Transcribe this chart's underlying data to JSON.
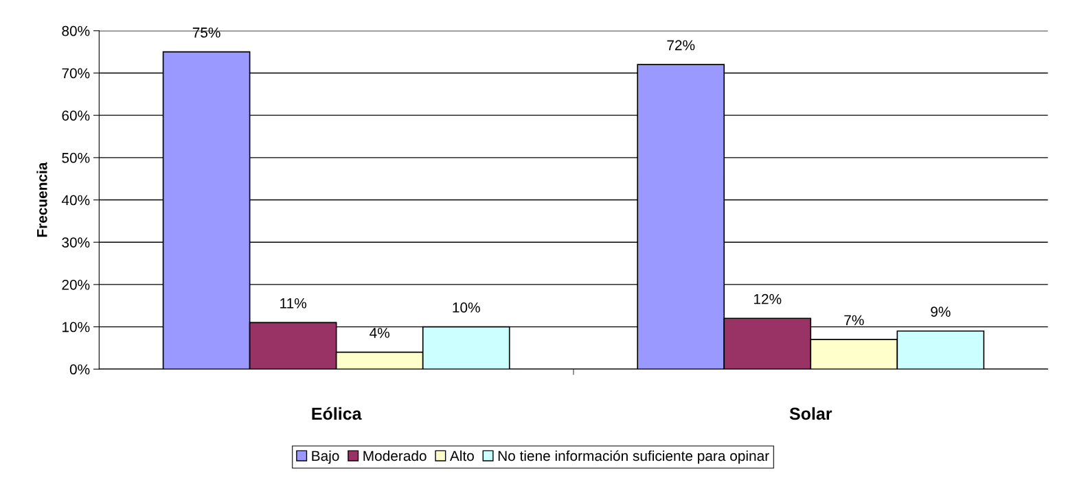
{
  "chart_data": {
    "type": "bar",
    "ylabel": "Frecuencia",
    "categories": [
      "Eólica",
      "Solar"
    ],
    "series": [
      {
        "name": "Bajo",
        "color": "#9999ff",
        "values": [
          75,
          72
        ],
        "value_labels": [
          "75%",
          "72%"
        ]
      },
      {
        "name": "Moderado",
        "color": "#993366",
        "values": [
          11,
          12
        ],
        "value_labels": [
          "11%",
          "12%"
        ]
      },
      {
        "name": "Alto",
        "color": "#ffffcc",
        "values": [
          4,
          7
        ],
        "value_labels": [
          "4%",
          "7%"
        ]
      },
      {
        "name": "No tiene información suficiente para opinar",
        "color": "#ccffff",
        "values": [
          10,
          9
        ],
        "value_labels": [
          "10%",
          "9%"
        ]
      }
    ],
    "ylim": [
      0,
      80
    ],
    "yticks": [
      {
        "value": 0,
        "label": "0%"
      },
      {
        "value": 10,
        "label": "10%"
      },
      {
        "value": 20,
        "label": "20%"
      },
      {
        "value": 30,
        "label": "30%"
      },
      {
        "value": 40,
        "label": "40%"
      },
      {
        "value": 50,
        "label": "50%"
      },
      {
        "value": 60,
        "label": "60%"
      },
      {
        "value": 70,
        "label": "70%"
      },
      {
        "value": 80,
        "label": "80%"
      }
    ],
    "grid": "y",
    "legend": "bottom"
  }
}
